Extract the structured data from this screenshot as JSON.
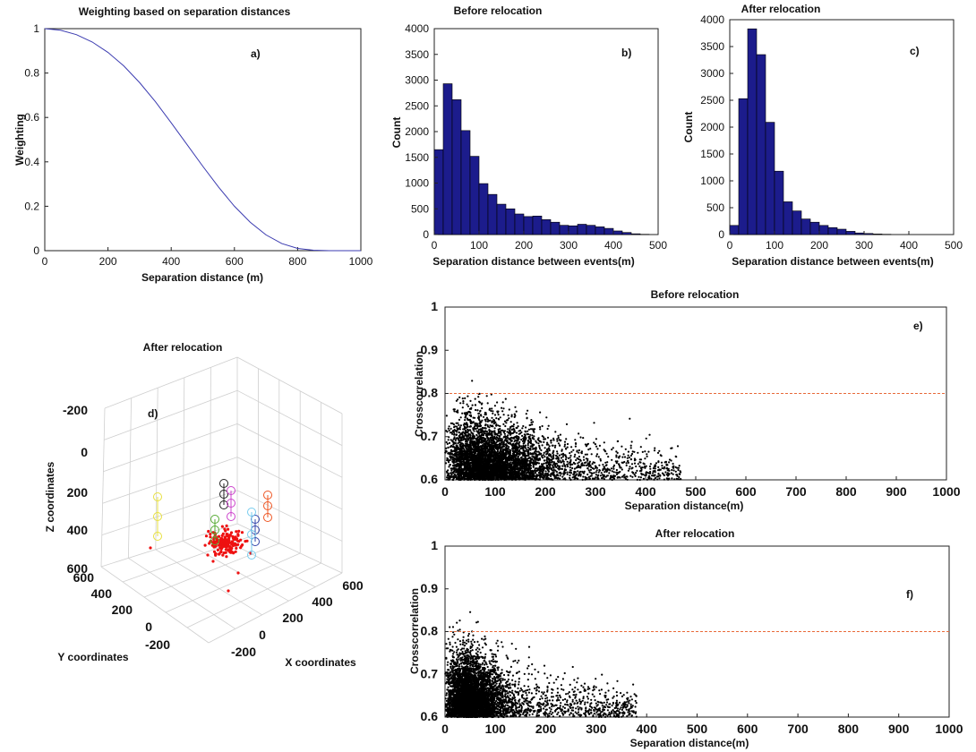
{
  "chart_data": [
    {
      "id": "a",
      "type": "line",
      "title": "Weighting based on separation distances",
      "panel_label": "a)",
      "xlabel": "Separation distance (m)",
      "ylabel": "Weighting",
      "xlim": [
        0,
        1000
      ],
      "ylim": [
        0,
        1
      ],
      "xticks": [
        0,
        200,
        400,
        600,
        800,
        1000
      ],
      "yticks": [
        0,
        0.2,
        0.4,
        0.6,
        0.8,
        1
      ],
      "series": [
        {
          "name": "weighting",
          "color": "#3b3bb0",
          "x": [
            0,
            50,
            100,
            150,
            200,
            250,
            300,
            350,
            400,
            450,
            500,
            550,
            600,
            650,
            700,
            750,
            800,
            850,
            900,
            950,
            1000
          ],
          "y": [
            1.0,
            0.993,
            0.973,
            0.94,
            0.893,
            0.832,
            0.757,
            0.671,
            0.576,
            0.478,
            0.38,
            0.286,
            0.2,
            0.128,
            0.071,
            0.032,
            0.01,
            0.002,
            0.0,
            0.0,
            0.0
          ]
        }
      ]
    },
    {
      "id": "b",
      "type": "bar",
      "title": "Before relocation",
      "panel_label": "b)",
      "xlabel": "Separation distance between events(m)",
      "ylabel": "Count",
      "xlim": [
        0,
        500
      ],
      "ylim": [
        0,
        4000
      ],
      "xticks": [
        0,
        100,
        200,
        300,
        400,
        500
      ],
      "yticks": [
        0,
        500,
        1000,
        1500,
        2000,
        2500,
        3000,
        3500,
        4000
      ],
      "bin_width": 20,
      "bin_edges_start": [
        0,
        20,
        40,
        60,
        80,
        100,
        120,
        140,
        160,
        180,
        200,
        220,
        240,
        260,
        280,
        300,
        320,
        340,
        360,
        380,
        400,
        420,
        440,
        460,
        480
      ],
      "values": [
        1650,
        2930,
        2620,
        2020,
        1520,
        990,
        780,
        590,
        500,
        400,
        350,
        360,
        290,
        240,
        180,
        170,
        200,
        180,
        150,
        120,
        70,
        40,
        15,
        5,
        0
      ],
      "color": "#1c1c8c"
    },
    {
      "id": "c",
      "type": "bar",
      "title": "After relocation",
      "panel_label": "c)",
      "xlabel": "Separation distance between events(m)",
      "ylabel": "Count",
      "xlim": [
        0,
        500
      ],
      "ylim": [
        0,
        4000
      ],
      "xticks": [
        0,
        100,
        200,
        300,
        400,
        500
      ],
      "yticks": [
        0,
        500,
        1000,
        1500,
        2000,
        2500,
        3000,
        3500,
        4000
      ],
      "bin_width": 20,
      "bin_edges_start": [
        0,
        20,
        40,
        60,
        80,
        100,
        120,
        140,
        160,
        180,
        200,
        220,
        240,
        260,
        280,
        300,
        320,
        340,
        360,
        380,
        400,
        420,
        440,
        460,
        480
      ],
      "values": [
        170,
        2530,
        3830,
        3350,
        2090,
        1180,
        610,
        440,
        290,
        230,
        170,
        130,
        100,
        60,
        30,
        20,
        10,
        5,
        0,
        0,
        0,
        0,
        0,
        0,
        0
      ],
      "color": "#1c1c8c"
    },
    {
      "id": "d",
      "type": "scatter3d",
      "title": "After relocation",
      "panel_label": "d)",
      "xlabel": "X coordinates",
      "ylabel": "Y coordinates",
      "zlabel": "Z coordinates",
      "xticks": [
        -200,
        0,
        200,
        400,
        600
      ],
      "yticks": [
        -200,
        0,
        200,
        400,
        600
      ],
      "zticks": [
        -200,
        0,
        200,
        400,
        600
      ],
      "xtick_labels": [
        "-200",
        "0",
        "200",
        "400",
        "600"
      ],
      "ytick_labels": [
        "-200",
        "0",
        "200",
        "400",
        "600"
      ],
      "ztick_labels": [
        "-200",
        "0",
        "200",
        "400",
        "600"
      ],
      "event_color": "#ee1111",
      "station_colors": [
        "#e8e040",
        "#55aa33",
        "#222222",
        "#cc44cc",
        "#3344aa",
        "#77ccee",
        "#ee5522"
      ]
    },
    {
      "id": "e",
      "type": "scatter",
      "title": "Before relocation",
      "panel_label": "e)",
      "xlabel": "Separation distance(m)",
      "ylabel": "Crosscorrelation",
      "xlim": [
        0,
        1000
      ],
      "ylim": [
        0.6,
        1
      ],
      "xticks": [
        0,
        100,
        200,
        300,
        400,
        500,
        600,
        700,
        800,
        900,
        1000
      ],
      "yticks": [
        0.6,
        0.7,
        0.8,
        0.9,
        1
      ],
      "threshold": 0.8,
      "threshold_color": "#e86a3a",
      "point_color": "#000000"
    },
    {
      "id": "f",
      "type": "scatter",
      "title": "After relocation",
      "panel_label": "f)",
      "xlabel": "Separation distance(m)",
      "ylabel": "Crosscorrelation",
      "xlim": [
        0,
        1000
      ],
      "ylim": [
        0.6,
        1
      ],
      "xticks": [
        0,
        100,
        200,
        300,
        400,
        500,
        600,
        700,
        800,
        900,
        1000
      ],
      "yticks": [
        0.6,
        0.7,
        0.8,
        0.9,
        1
      ],
      "threshold": 0.8,
      "threshold_color": "#e86a3a",
      "point_color": "#000000"
    }
  ]
}
